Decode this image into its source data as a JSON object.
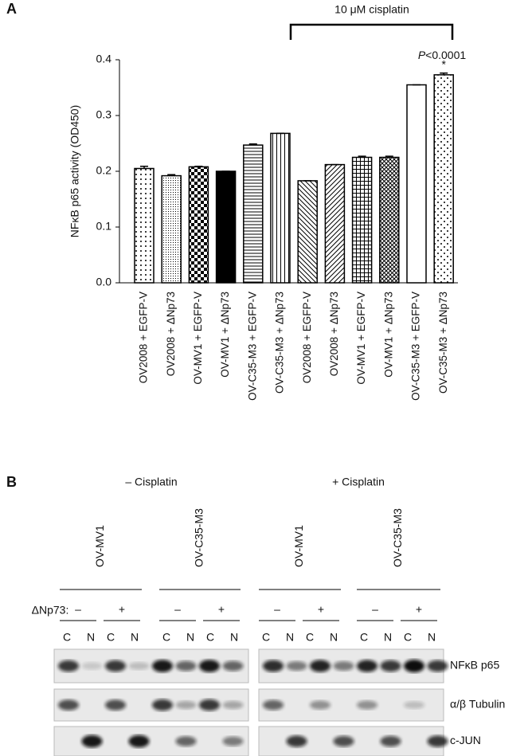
{
  "chart_data": {
    "type": "bar",
    "panel_label": "A",
    "ylabel": "NFκB p65 activity (OD450)",
    "categories": [
      "OV2008 + EGFP-V",
      "OV2008 + ΔNp73",
      "OV-MV1 + EGFP-V",
      "OV-MV1 + ΔNp73",
      "OV-C35-M3 + EGFP-V",
      "OV-C35-M3 + ΔNp73",
      "OV2008 + EGFP-V",
      "OV2008 + ΔNp73",
      "OV-MV1 + EGFP-V",
      "OV-MV1 + ΔNp73",
      "OV-C35-M3 + EGFP-V",
      "OV-C35-M3 + ΔNp73"
    ],
    "values": [
      0.205,
      0.192,
      0.208,
      0.2,
      0.247,
      0.268,
      0.183,
      0.212,
      0.225,
      0.225,
      0.355,
      0.373
    ],
    "errors": [
      0.004,
      0.002,
      0.001,
      0,
      0.002,
      0,
      0,
      0,
      0.002,
      0.002,
      0,
      0.003
    ],
    "fills": [
      "dots",
      "fine-dots",
      "checker",
      "solid",
      "hlines",
      "vlines",
      "diag-back",
      "diag-fwd",
      "grid",
      "crosshatch",
      "white",
      "sparse-dots"
    ],
    "ylim": [
      0,
      0.4
    ],
    "yticks": [
      {
        "value": 0,
        "label": "0.0"
      },
      0.1,
      0.2,
      0.3,
      0.4
    ],
    "bracket_label": "10 μM cisplatin",
    "annotation_italic": "P",
    "annotation": "<0.0001",
    "annotation_mark": "*"
  },
  "blot": {
    "panel_label": "B",
    "conditions": [
      {
        "label": "– Cisplatin",
        "cell_lines": [
          "OV-MV1",
          "OV-C35-M3"
        ]
      },
      {
        "label": "+ Cisplatin",
        "cell_lines": [
          "OV-MV1",
          "OV-C35-M3"
        ]
      }
    ],
    "dnp73_label": "ΔNp73:",
    "dnp73_states": [
      "–",
      "+"
    ],
    "fractions": [
      "C",
      "N"
    ],
    "rows": [
      "NFκB p65",
      "α/β Tubulin",
      "c-JUN"
    ]
  }
}
